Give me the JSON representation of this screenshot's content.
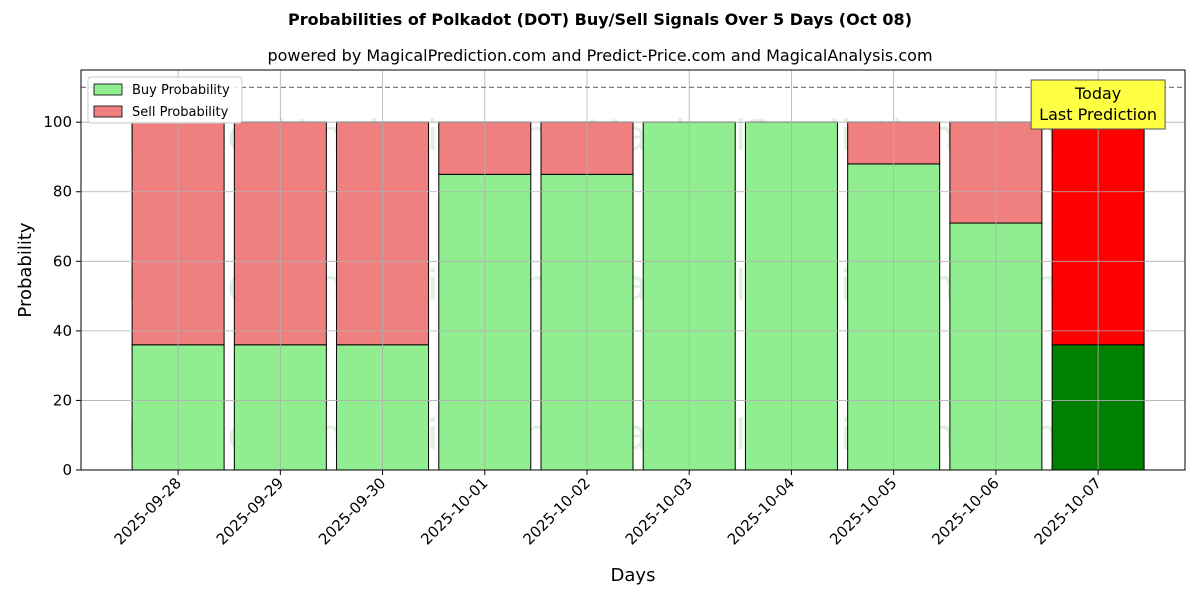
{
  "chart_data": {
    "type": "bar",
    "stacked": true,
    "title": "Probabilities of Polkadot (DOT) Buy/Sell Signals Over 5 Days (Oct 08)",
    "subtitle": "powered by MagicalPrediction.com and Predict-Price.com and MagicalAnalysis.com",
    "xlabel": "Days",
    "ylabel": "Probability",
    "categories": [
      "2025-09-28",
      "2025-09-29",
      "2025-09-30",
      "2025-10-01",
      "2025-10-02",
      "2025-10-03",
      "2025-10-04",
      "2025-10-05",
      "2025-10-06",
      "2025-10-07"
    ],
    "series": [
      {
        "name": "Buy Probability",
        "values": [
          36,
          36,
          36,
          85,
          85,
          100,
          100,
          88,
          71,
          36
        ],
        "color": "#90ee90",
        "highlight_color": "#008000"
      },
      {
        "name": "Sell Probability",
        "values": [
          64,
          64,
          64,
          15,
          15,
          0,
          0,
          12,
          29,
          64
        ],
        "color": "#f08080",
        "highlight_color": "#ff0000"
      }
    ],
    "highlight_index": 9,
    "ylim": [
      0,
      115
    ],
    "yticks": [
      0,
      20,
      40,
      60,
      80,
      100
    ],
    "reference_line": {
      "value": 110,
      "style": "dashed",
      "color": "#808080"
    },
    "grid": true,
    "legend_placement": "top-left",
    "annotation": {
      "lines": [
        "Today",
        "Last Prediction"
      ],
      "background": "#ffff44"
    },
    "watermarks": [
      "MagicalAnalysis.com",
      "MagicalPrediction.com"
    ]
  }
}
